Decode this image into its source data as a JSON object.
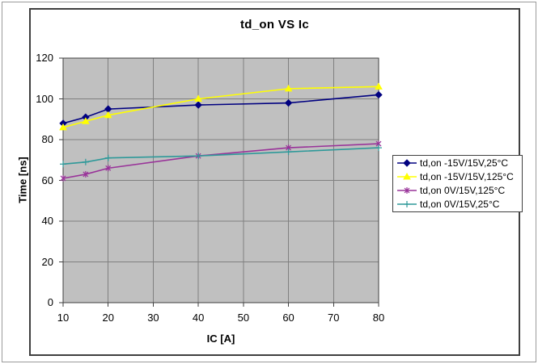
{
  "chart_data": {
    "type": "line",
    "title": "td_on VS Ic",
    "xlabel": "IC [A]",
    "ylabel": "Time [ns]",
    "x": [
      10,
      15,
      20,
      40,
      60,
      80
    ],
    "xlim": [
      10,
      80
    ],
    "ylim": [
      0,
      120
    ],
    "x_ticks": [
      10,
      20,
      30,
      40,
      50,
      60,
      70,
      80
    ],
    "y_ticks": [
      0,
      20,
      40,
      60,
      80,
      100,
      120
    ],
    "grid": true,
    "plot_bg": "#c0c0c0",
    "grid_color": "#808080",
    "axis_color": "#3f3f3f",
    "legend_position": "right",
    "series": [
      {
        "name": "td,on -15V/15V,25°C",
        "color": "#000080",
        "marker": "diamond",
        "values": [
          88,
          91,
          95,
          97,
          98,
          102
        ]
      },
      {
        "name": "td,on -15V/15V,125°C",
        "color": "#ffff00",
        "marker": "triangle",
        "values": [
          86,
          89,
          92,
          100,
          105,
          106
        ]
      },
      {
        "name": "td,on 0V/15V,125°C",
        "color": "#993399",
        "marker": "asterisk",
        "values": [
          61,
          63,
          66,
          72,
          76,
          78
        ]
      },
      {
        "name": "td,on 0V/15V,25°C",
        "color": "#2e9999",
        "marker": "plus",
        "values": [
          68,
          69,
          71,
          72,
          74,
          76
        ]
      }
    ]
  }
}
